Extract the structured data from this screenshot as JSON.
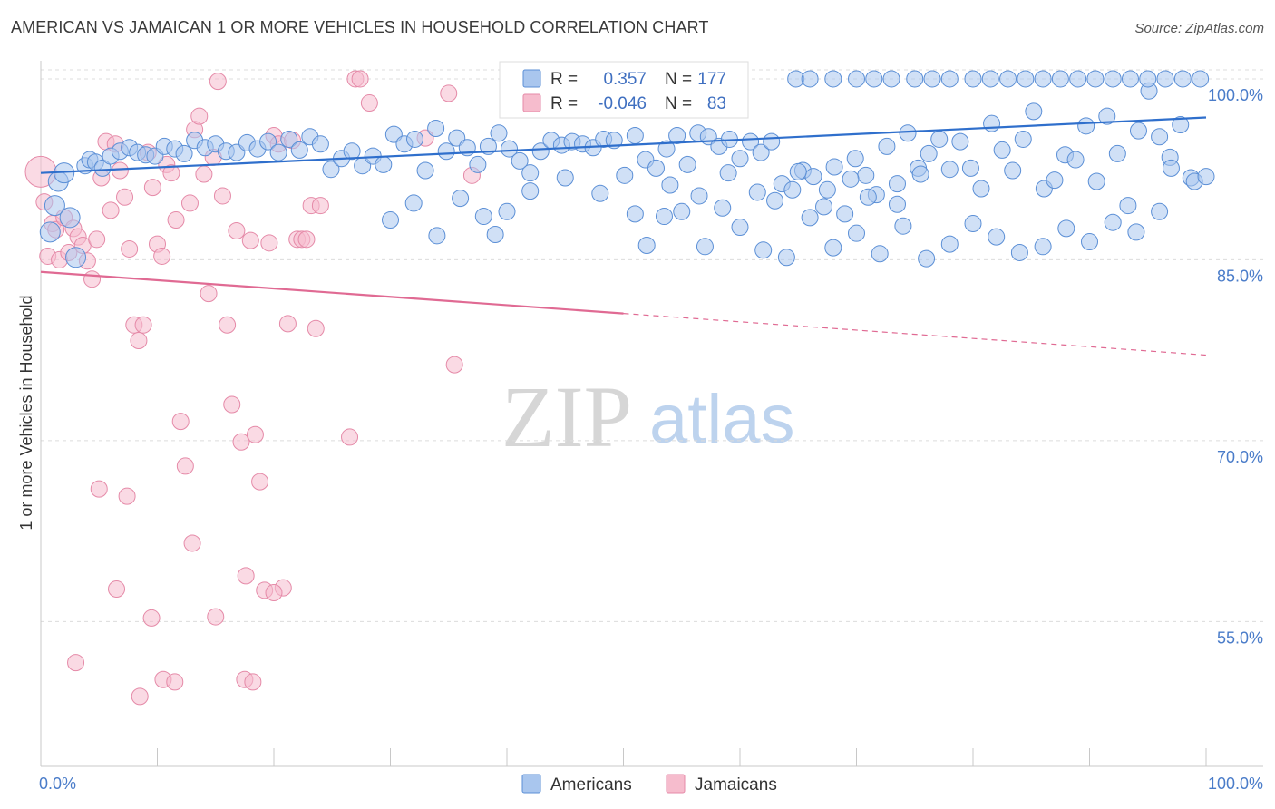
{
  "title": "AMERICAN VS JAMAICAN 1 OR MORE VEHICLES IN HOUSEHOLD CORRELATION CHART",
  "source": "Source: ZipAtlas.com",
  "watermark": {
    "zip": "ZIP",
    "atlas": "atlas"
  },
  "legend": {
    "r_label": "R =",
    "n_label": "N =",
    "american": {
      "r": "0.357",
      "n": "177"
    },
    "jamaican": {
      "r": "-0.046",
      "n": "83"
    }
  },
  "colors": {
    "american_fill": "#a9c6ee",
    "american_stroke": "#5b8fd6",
    "american_line": "#2f6fcc",
    "jamaican_fill": "#f6bccd",
    "jamaican_stroke": "#e58aa8",
    "jamaican_line": "#e06a93",
    "grid": "#dcdcdc",
    "tick_label": "#4a7cc9"
  },
  "chart_data": {
    "type": "scatter",
    "xlabel": "",
    "ylabel": "1 or more Vehicles in Household",
    "xlim": [
      0,
      100
    ],
    "ylim": [
      43,
      101.5
    ],
    "x_tick_labels": [
      "0.0%",
      "100.0%"
    ],
    "y_ticks": [
      100,
      85,
      70,
      55
    ],
    "y_tick_labels": [
      "100.0%",
      "85.0%",
      "70.0%",
      "55.0%"
    ],
    "grid": true,
    "legend_position": "top-center",
    "series": [
      {
        "name": "Americans",
        "trend": {
          "x": [
            0,
            100
          ],
          "y": [
            92.2,
            96.8
          ]
        },
        "points": [
          [
            0.8,
            87.3
          ],
          [
            1.2,
            89.5
          ],
          [
            1.5,
            91.5
          ],
          [
            2.0,
            92.2
          ],
          [
            2.5,
            88.5
          ],
          [
            3.0,
            85.2
          ],
          [
            3.8,
            92.8
          ],
          [
            4.2,
            93.3
          ],
          [
            4.7,
            93.1
          ],
          [
            5.3,
            92.6
          ],
          [
            6.0,
            93.6
          ],
          [
            6.8,
            94.0
          ],
          [
            7.6,
            94.3
          ],
          [
            8.3,
            93.9
          ],
          [
            9.0,
            93.7
          ],
          [
            9.8,
            93.6
          ],
          [
            10.6,
            94.4
          ],
          [
            11.5,
            94.2
          ],
          [
            12.3,
            93.8
          ],
          [
            13.2,
            94.9
          ],
          [
            14.1,
            94.3
          ],
          [
            15.0,
            94.6
          ],
          [
            15.9,
            94.0
          ],
          [
            16.8,
            93.9
          ],
          [
            17.7,
            94.7
          ],
          [
            18.6,
            94.2
          ],
          [
            19.5,
            94.8
          ],
          [
            20.4,
            93.9
          ],
          [
            21.3,
            95.0
          ],
          [
            22.2,
            94.1
          ],
          [
            23.1,
            95.2
          ],
          [
            24.0,
            94.6
          ],
          [
            24.9,
            92.5
          ],
          [
            25.8,
            93.4
          ],
          [
            26.7,
            94.0
          ],
          [
            27.6,
            92.8
          ],
          [
            28.5,
            93.6
          ],
          [
            29.4,
            92.9
          ],
          [
            30.3,
            95.4
          ],
          [
            31.2,
            94.6
          ],
          [
            32.1,
            95.0
          ],
          [
            33.0,
            92.4
          ],
          [
            33.9,
            95.9
          ],
          [
            34.8,
            94.0
          ],
          [
            35.7,
            95.1
          ],
          [
            36.6,
            94.3
          ],
          [
            37.5,
            92.9
          ],
          [
            38.4,
            94.4
          ],
          [
            39.3,
            95.5
          ],
          [
            40.2,
            94.2
          ],
          [
            41.1,
            93.2
          ],
          [
            42.0,
            92.2
          ],
          [
            42.9,
            94.0
          ],
          [
            43.8,
            94.9
          ],
          [
            44.7,
            94.5
          ],
          [
            45.6,
            94.8
          ],
          [
            46.5,
            94.6
          ],
          [
            47.4,
            94.3
          ],
          [
            48.3,
            95.0
          ],
          [
            49.2,
            94.9
          ],
          [
            50.1,
            92.0
          ],
          [
            51.0,
            95.3
          ],
          [
            51.9,
            93.3
          ],
          [
            52.8,
            92.6
          ],
          [
            53.7,
            94.2
          ],
          [
            54.6,
            95.3
          ],
          [
            55.5,
            92.9
          ],
          [
            56.4,
            95.5
          ],
          [
            57.3,
            95.2
          ],
          [
            58.2,
            94.4
          ],
          [
            59.1,
            95.0
          ],
          [
            60.0,
            93.4
          ],
          [
            60.9,
            94.8
          ],
          [
            61.8,
            93.9
          ],
          [
            62.7,
            94.8
          ],
          [
            63.6,
            91.3
          ],
          [
            64.5,
            90.8
          ],
          [
            65.4,
            92.4
          ],
          [
            66.3,
            91.9
          ],
          [
            67.2,
            89.4
          ],
          [
            68.1,
            92.7
          ],
          [
            69.0,
            88.8
          ],
          [
            69.9,
            93.4
          ],
          [
            70.8,
            92.0
          ],
          [
            71.7,
            90.4
          ],
          [
            72.6,
            94.4
          ],
          [
            73.5,
            91.3
          ],
          [
            74.4,
            95.5
          ],
          [
            75.3,
            92.6
          ],
          [
            76.2,
            93.8
          ],
          [
            77.1,
            95.0
          ],
          [
            78.0,
            92.5
          ],
          [
            78.9,
            94.8
          ],
          [
            79.8,
            92.6
          ],
          [
            80.7,
            90.9
          ],
          [
            81.6,
            96.3
          ],
          [
            82.5,
            94.1
          ],
          [
            83.4,
            92.4
          ],
          [
            84.3,
            95.0
          ],
          [
            85.2,
            97.3
          ],
          [
            86.1,
            90.9
          ],
          [
            87.0,
            91.6
          ],
          [
            87.9,
            93.7
          ],
          [
            88.8,
            93.3
          ],
          [
            89.7,
            96.1
          ],
          [
            90.6,
            91.5
          ],
          [
            91.5,
            96.9
          ],
          [
            92.4,
            93.8
          ],
          [
            93.3,
            89.5
          ],
          [
            94.2,
            95.7
          ],
          [
            95.1,
            99.0
          ],
          [
            96.0,
            95.2
          ],
          [
            96.9,
            93.5
          ],
          [
            97.8,
            96.2
          ],
          [
            98.7,
            91.8
          ],
          [
            40.0,
            89.0
          ],
          [
            42.0,
            90.7
          ],
          [
            45.0,
            91.8
          ],
          [
            48.0,
            90.5
          ],
          [
            51.0,
            88.8
          ],
          [
            52.0,
            86.2
          ],
          [
            53.5,
            88.6
          ],
          [
            55.0,
            89.0
          ],
          [
            57.0,
            86.1
          ],
          [
            58.5,
            89.3
          ],
          [
            60.0,
            87.7
          ],
          [
            62.0,
            85.8
          ],
          [
            64.0,
            85.2
          ],
          [
            66.0,
            88.5
          ],
          [
            68.0,
            86.0
          ],
          [
            70.0,
            87.2
          ],
          [
            72.0,
            85.5
          ],
          [
            74.0,
            87.8
          ],
          [
            76.0,
            85.1
          ],
          [
            78.0,
            86.3
          ],
          [
            80.0,
            88.0
          ],
          [
            82.0,
            86.9
          ],
          [
            84.0,
            85.6
          ],
          [
            86.0,
            86.1
          ],
          [
            88.0,
            87.6
          ],
          [
            90.0,
            86.5
          ],
          [
            92.0,
            88.1
          ],
          [
            94.0,
            87.3
          ],
          [
            96.0,
            89.0
          ],
          [
            30.0,
            88.3
          ],
          [
            32.0,
            89.7
          ],
          [
            34.0,
            87.0
          ],
          [
            36.0,
            90.1
          ],
          [
            38.0,
            88.6
          ],
          [
            39.0,
            87.1
          ],
          [
            64.8,
            100.0
          ],
          [
            66.0,
            100.0
          ],
          [
            68.0,
            100.0
          ],
          [
            70.0,
            100.0
          ],
          [
            71.5,
            100.0
          ],
          [
            73.0,
            100.0
          ],
          [
            75.0,
            100.0
          ],
          [
            76.5,
            100.0
          ],
          [
            78.0,
            100.0
          ],
          [
            80.0,
            100.0
          ],
          [
            81.5,
            100.0
          ],
          [
            83.0,
            100.0
          ],
          [
            84.5,
            100.0
          ],
          [
            86.0,
            100.0
          ],
          [
            87.5,
            100.0
          ],
          [
            89.0,
            100.0
          ],
          [
            90.5,
            100.0
          ],
          [
            92.0,
            100.0
          ],
          [
            93.5,
            100.0
          ],
          [
            95.0,
            100.0
          ],
          [
            96.5,
            100.0
          ],
          [
            98.0,
            100.0
          ],
          [
            99.5,
            100.0
          ],
          [
            97.0,
            92.6
          ],
          [
            99.0,
            91.5
          ],
          [
            100.0,
            91.9
          ],
          [
            54.0,
            91.2
          ],
          [
            56.5,
            90.3
          ],
          [
            59.0,
            92.2
          ],
          [
            61.5,
            90.6
          ],
          [
            63.0,
            89.9
          ],
          [
            65.0,
            92.3
          ],
          [
            67.5,
            90.8
          ],
          [
            69.5,
            91.7
          ],
          [
            71.0,
            90.2
          ],
          [
            73.5,
            89.6
          ],
          [
            75.5,
            92.1
          ]
        ]
      },
      {
        "name": "Jamaicans",
        "trend": {
          "x": [
            0,
            100
          ],
          "y": [
            84.0,
            77.1
          ]
        },
        "points": [
          [
            0.0,
            92.3
          ],
          [
            0.3,
            89.8
          ],
          [
            0.6,
            85.3
          ],
          [
            1.0,
            88.0
          ],
          [
            1.3,
            87.5
          ],
          [
            1.6,
            85.0
          ],
          [
            2.0,
            88.5
          ],
          [
            2.4,
            85.6
          ],
          [
            2.8,
            87.6
          ],
          [
            3.2,
            86.9
          ],
          [
            3.6,
            86.2
          ],
          [
            4.0,
            84.9
          ],
          [
            4.4,
            83.4
          ],
          [
            4.8,
            86.7
          ],
          [
            5.2,
            91.8
          ],
          [
            5.6,
            94.8
          ],
          [
            6.0,
            89.1
          ],
          [
            6.4,
            94.6
          ],
          [
            6.8,
            92.4
          ],
          [
            7.2,
            90.2
          ],
          [
            7.6,
            85.9
          ],
          [
            8.0,
            79.6
          ],
          [
            8.4,
            78.3
          ],
          [
            8.8,
            79.6
          ],
          [
            9.2,
            93.9
          ],
          [
            9.6,
            91.0
          ],
          [
            10.0,
            86.3
          ],
          [
            10.4,
            85.3
          ],
          [
            10.8,
            92.9
          ],
          [
            11.2,
            92.2
          ],
          [
            11.6,
            88.3
          ],
          [
            12.0,
            71.6
          ],
          [
            12.4,
            67.9
          ],
          [
            12.8,
            89.7
          ],
          [
            13.2,
            95.8
          ],
          [
            13.6,
            96.9
          ],
          [
            14.0,
            92.1
          ],
          [
            14.4,
            82.2
          ],
          [
            14.8,
            93.5
          ],
          [
            15.2,
            99.8
          ],
          [
            15.6,
            90.3
          ],
          [
            16.0,
            79.6
          ],
          [
            16.4,
            73.0
          ],
          [
            16.8,
            87.4
          ],
          [
            17.2,
            69.9
          ],
          [
            17.6,
            58.8
          ],
          [
            18.0,
            86.6
          ],
          [
            18.4,
            70.5
          ],
          [
            18.8,
            66.6
          ],
          [
            19.2,
            57.6
          ],
          [
            19.6,
            86.4
          ],
          [
            20.0,
            95.3
          ],
          [
            20.4,
            94.6
          ],
          [
            20.8,
            57.8
          ],
          [
            21.2,
            79.7
          ],
          [
            21.6,
            94.9
          ],
          [
            22.0,
            86.7
          ],
          [
            22.4,
            86.7
          ],
          [
            22.8,
            86.7
          ],
          [
            23.2,
            89.5
          ],
          [
            23.6,
            79.3
          ],
          [
            24.0,
            89.5
          ],
          [
            27.0,
            100.0
          ],
          [
            27.4,
            100.0
          ],
          [
            28.2,
            98.0
          ],
          [
            5.0,
            66.0
          ],
          [
            6.5,
            57.7
          ],
          [
            7.4,
            65.4
          ],
          [
            8.5,
            48.8
          ],
          [
            9.5,
            55.3
          ],
          [
            10.5,
            50.2
          ],
          [
            11.5,
            50.0
          ],
          [
            3.0,
            51.6
          ],
          [
            13.0,
            61.5
          ],
          [
            15.0,
            55.4
          ],
          [
            17.5,
            50.2
          ],
          [
            18.2,
            50.0
          ],
          [
            20.0,
            57.4
          ],
          [
            26.5,
            70.3
          ],
          [
            35.5,
            76.3
          ],
          [
            35.0,
            98.8
          ],
          [
            33.0,
            95.1
          ],
          [
            37.0,
            92.0
          ]
        ]
      }
    ]
  },
  "bottom_legend": {
    "american": "Americans",
    "jamaican": "Jamaicans"
  }
}
